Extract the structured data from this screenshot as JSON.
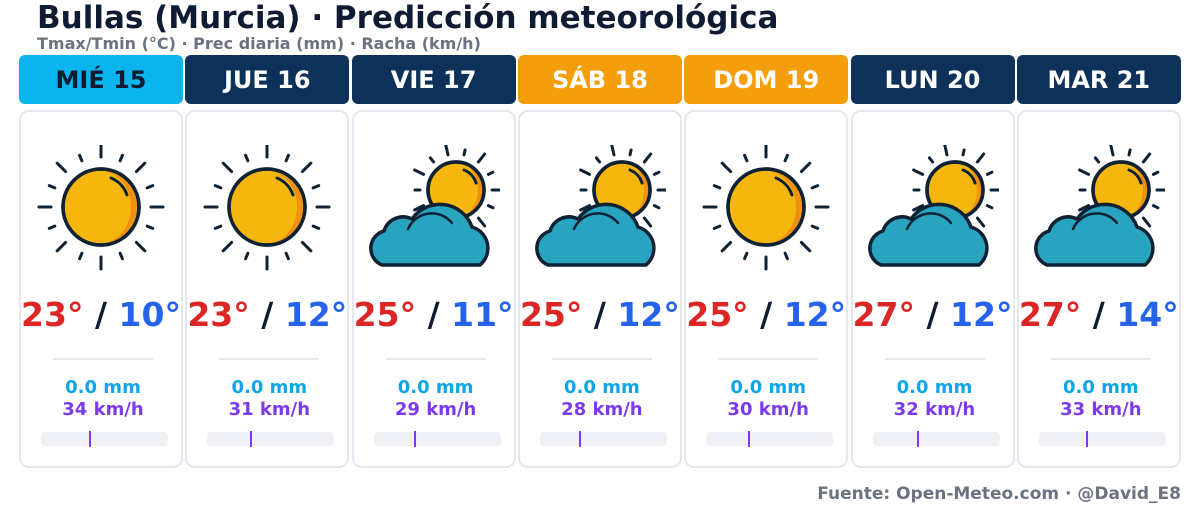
{
  "header": {
    "title": "Bullas (Murcia) · Predicción meteorológica",
    "subtitle": "Tmax/Tmin (°C) · Prec diaria (mm) · Racha (km/h)"
  },
  "colors": {
    "today": "#0ab4ec",
    "weekday": "#0d3159",
    "weekend": "#f59e0b",
    "tmax": "#dc2626",
    "tmin": "#2563eb",
    "precip": "#0ea5e9",
    "gust": "#7c3aed"
  },
  "days": [
    {
      "label": "MIÉ 15",
      "kind": "today",
      "icon": "sun-icon",
      "tmax": "23°",
      "tmin": "10°",
      "prec": "0.0 mm",
      "gust": "34 km/h",
      "gust_level": 0.38
    },
    {
      "label": "JUE 16",
      "kind": "weekday",
      "icon": "sun-icon",
      "tmax": "23°",
      "tmin": "12°",
      "prec": "0.0 mm",
      "gust": "31 km/h",
      "gust_level": 0.34
    },
    {
      "label": "VIE 17",
      "kind": "weekday",
      "icon": "partly-cloudy-icon",
      "tmax": "25°",
      "tmin": "11°",
      "prec": "0.0 mm",
      "gust": "29 km/h",
      "gust_level": 0.32
    },
    {
      "label": "SÁB 18",
      "kind": "weekend",
      "icon": "partly-cloudy-icon",
      "tmax": "25°",
      "tmin": "12°",
      "prec": "0.0 mm",
      "gust": "28 km/h",
      "gust_level": 0.31
    },
    {
      "label": "DOM 19",
      "kind": "weekend",
      "icon": "sun-icon",
      "tmax": "25°",
      "tmin": "12°",
      "prec": "0.0 mm",
      "gust": "30 km/h",
      "gust_level": 0.33
    },
    {
      "label": "LUN 20",
      "kind": "weekday",
      "icon": "partly-cloudy-icon",
      "tmax": "27°",
      "tmin": "12°",
      "prec": "0.0 mm",
      "gust": "32 km/h",
      "gust_level": 0.35
    },
    {
      "label": "MAR 21",
      "kind": "weekday",
      "icon": "partly-cloudy-icon",
      "tmax": "27°",
      "tmin": "14°",
      "prec": "0.0 mm",
      "gust": "33 km/h",
      "gust_level": 0.37
    }
  ],
  "footer": {
    "source": "Fuente: Open-Meteo.com · @David_E8"
  }
}
